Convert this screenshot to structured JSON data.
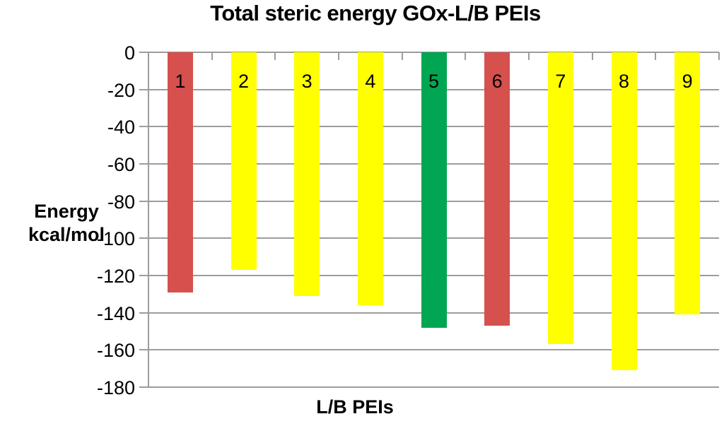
{
  "chart_data": {
    "type": "bar",
    "title": "Total steric energy GOx-L/B PEIs",
    "xlabel": "L/B PEIs",
    "ylabel": "Energy kcal/mol",
    "ylabel_lines": [
      "Energy",
      "kcal/mol"
    ],
    "categories": [
      "1",
      "2",
      "3",
      "4",
      "5",
      "6",
      "7",
      "8",
      "9"
    ],
    "values": [
      -129,
      -117,
      -131,
      -136,
      -148,
      -147,
      -157,
      -171,
      -141
    ],
    "bar_colors": [
      "#D6504D",
      "#FFFF00",
      "#FFFF00",
      "#FFFF00",
      "#00A651",
      "#D6504D",
      "#FFFF00",
      "#FFFF00",
      "#FFFF00"
    ],
    "yticks": [
      0,
      -20,
      -40,
      -60,
      -80,
      -100,
      -120,
      -140,
      -160,
      -180
    ],
    "ylim": [
      -180,
      0
    ],
    "grid": "horizontal",
    "legend": "none",
    "colors": {
      "red": "#D6504D",
      "yellow": "#FFFF00",
      "green": "#00A651",
      "gridline": "#9C9C9C",
      "text": "#000000",
      "background": "#FFFFFF"
    }
  }
}
